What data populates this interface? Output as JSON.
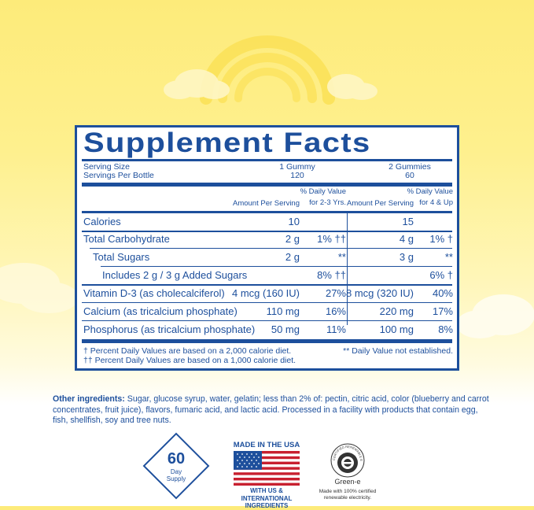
{
  "title": "Supplement Facts",
  "serving": {
    "size_label": "Serving Size",
    "per_bottle_label": "Servings Per Bottle",
    "col1_size": "1 Gummy",
    "col1_count": "120",
    "col2_size": "2 Gummies",
    "col2_count": "60"
  },
  "headers": {
    "amount1": "Amount Per Serving",
    "dv1_line1": "% Daily Value",
    "dv1_line2": "for 2-3 Yrs.",
    "amount2": "Amount Per Serving",
    "dv2_line1": "% Daily Value",
    "dv2_line2": "for 4 & Up"
  },
  "rows": [
    {
      "name": "Calories",
      "amt1": "10",
      "dv1": "",
      "amt2": "15",
      "dv2": ""
    },
    {
      "name": "Total Carbohydrate",
      "amt1": "2 g",
      "dv1": "1% ††",
      "amt2": "4 g",
      "dv2": "1% †"
    },
    {
      "name": "Total Sugars",
      "amt1": "2 g",
      "dv1": "**",
      "amt2": "3 g",
      "dv2": "**"
    },
    {
      "name": "Includes 2 g / 3 g Added Sugars",
      "amt1": "",
      "dv1": "8% ††",
      "amt2": "",
      "dv2": "6% †"
    },
    {
      "name": "Vitamin D-3 (as cholecalciferol)",
      "amt1": "4 mcg (160 IU)",
      "dv1": "27%",
      "amt2": "8 mcg (320 IU)",
      "dv2": "40%"
    },
    {
      "name": "Calcium (as tricalcium phosphate)",
      "amt1": "110 mg",
      "dv1": "16%",
      "amt2": "220 mg",
      "dv2": "17%"
    },
    {
      "name": "Phosphorus (as tricalcium phosphate)",
      "amt1": "50 mg",
      "dv1": "11%",
      "amt2": "100 mg",
      "dv2": "8%"
    }
  ],
  "footnotes": {
    "f1": "† Percent Daily Values are based on a 2,000 calorie diet.",
    "f2": "†† Percent Daily Values are based on a 1,000 calorie diet.",
    "f3": "** Daily Value not established."
  },
  "ingredients": {
    "label": "Other ingredients:",
    "text": " Sugar, glucose syrup, water, gelatin; less than 2% of: pectin, citric acid, color (blueberry and carrot concentrates, fruit juice), flavors, fumaric acid, and lactic acid. Processed in a facility with products that contain egg, fish, shellfish, soy and tree nuts."
  },
  "badges": {
    "days_number": "60",
    "days_line1": "Day",
    "days_line2": "Supply",
    "made_top": "MADE IN THE USA",
    "made_bottom1": "WITH US & INTERNATIONAL",
    "made_bottom2": "INGREDIENTS",
    "green_ring": "CERTIFIED RENEWABLE ENERGY",
    "green_name": "Green-e",
    "green_line1": "Made with 100% certified",
    "green_line2": "renewable electricity."
  },
  "colors": {
    "navy": "#1d4f9c",
    "yellow_bg": "#fdeb7a",
    "rainbow": "#fbe25a",
    "flag_red": "#c8202f"
  }
}
